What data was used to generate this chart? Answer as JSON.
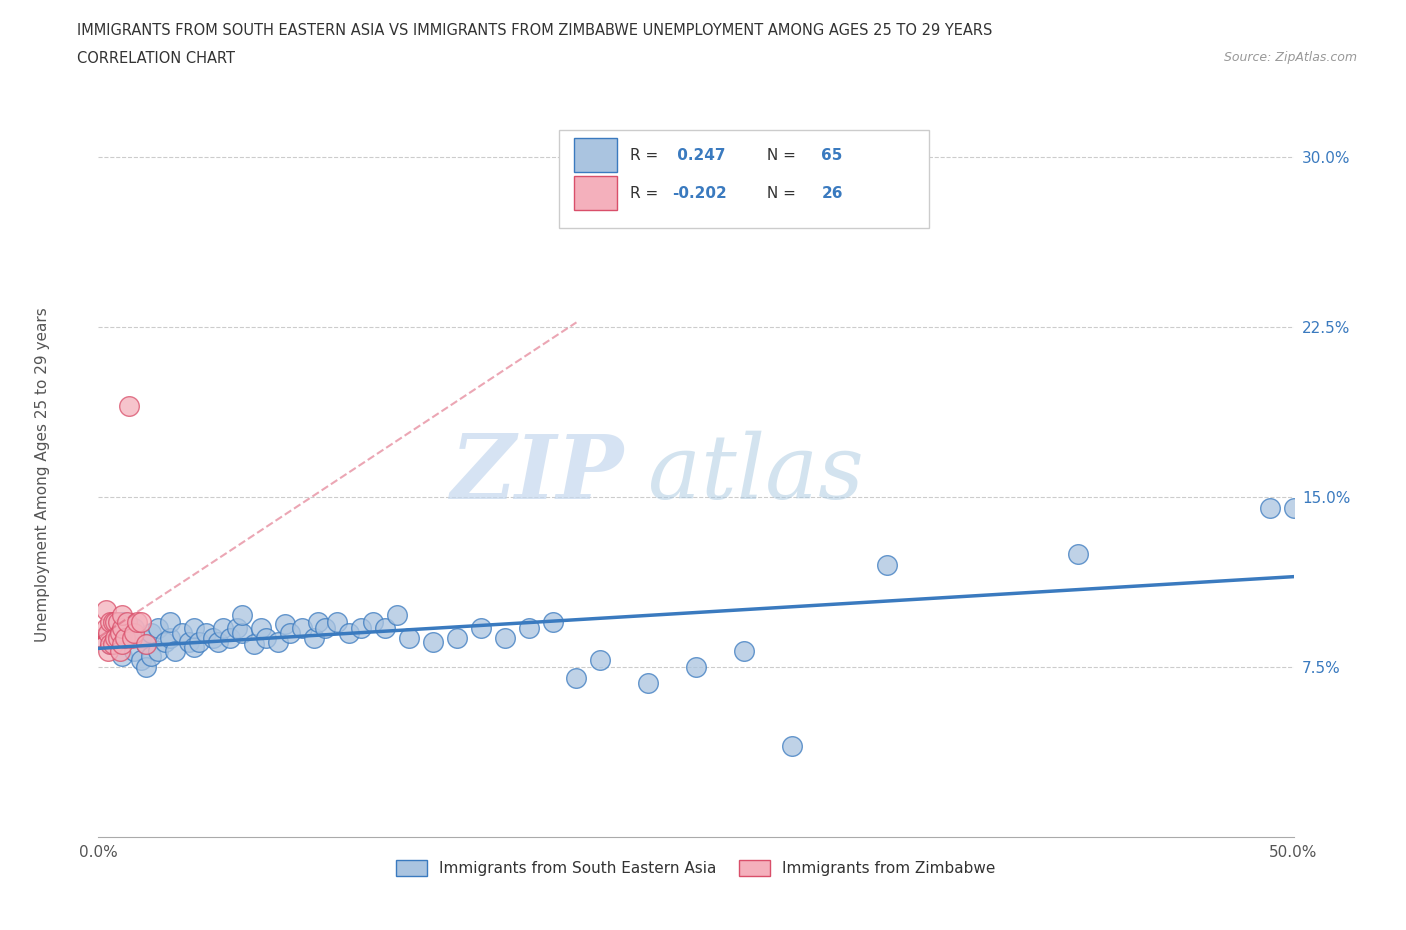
{
  "title_line1": "IMMIGRANTS FROM SOUTH EASTERN ASIA VS IMMIGRANTS FROM ZIMBABWE UNEMPLOYMENT AMONG AGES 25 TO 29 YEARS",
  "title_line2": "CORRELATION CHART",
  "source_text": "Source: ZipAtlas.com",
  "ylabel": "Unemployment Among Ages 25 to 29 years",
  "xmin": 0.0,
  "xmax": 0.5,
  "ymin": 0.0,
  "ymax": 0.32,
  "yticks": [
    0.0,
    0.075,
    0.15,
    0.225,
    0.3
  ],
  "ytick_labels": [
    "",
    "7.5%",
    "15.0%",
    "22.5%",
    "30.0%"
  ],
  "xticks": [
    0.0,
    0.1,
    0.2,
    0.3,
    0.4,
    0.5
  ],
  "xtick_labels": [
    "0.0%",
    "",
    "",
    "",
    "",
    "50.0%"
  ],
  "r_blue": 0.247,
  "n_blue": 65,
  "r_pink": -0.202,
  "n_pink": 26,
  "blue_color": "#aac4e0",
  "pink_color": "#f4b0bc",
  "blue_line_color": "#3a7abf",
  "pink_line_color": "#d94f6a",
  "legend_label_blue": "Immigrants from South Eastern Asia",
  "legend_label_pink": "Immigrants from Zimbabwe",
  "watermark_zip": "ZIP",
  "watermark_atlas": "atlas",
  "blue_scatter_x": [
    0.005,
    0.007,
    0.01,
    0.01,
    0.012,
    0.015,
    0.015,
    0.018,
    0.018,
    0.02,
    0.02,
    0.022,
    0.022,
    0.025,
    0.025,
    0.028,
    0.03,
    0.03,
    0.032,
    0.035,
    0.038,
    0.04,
    0.04,
    0.042,
    0.045,
    0.048,
    0.05,
    0.052,
    0.055,
    0.058,
    0.06,
    0.06,
    0.065,
    0.068,
    0.07,
    0.075,
    0.078,
    0.08,
    0.085,
    0.09,
    0.092,
    0.095,
    0.1,
    0.105,
    0.11,
    0.115,
    0.12,
    0.125,
    0.13,
    0.14,
    0.15,
    0.16,
    0.17,
    0.18,
    0.19,
    0.2,
    0.21,
    0.23,
    0.25,
    0.27,
    0.29,
    0.33,
    0.41,
    0.49,
    0.5
  ],
  "blue_scatter_y": [
    0.085,
    0.09,
    0.08,
    0.095,
    0.088,
    0.082,
    0.092,
    0.078,
    0.088,
    0.075,
    0.085,
    0.08,
    0.09,
    0.082,
    0.092,
    0.086,
    0.088,
    0.095,
    0.082,
    0.09,
    0.086,
    0.084,
    0.092,
    0.086,
    0.09,
    0.088,
    0.086,
    0.092,
    0.088,
    0.092,
    0.09,
    0.098,
    0.085,
    0.092,
    0.088,
    0.086,
    0.094,
    0.09,
    0.092,
    0.088,
    0.095,
    0.092,
    0.095,
    0.09,
    0.092,
    0.095,
    0.092,
    0.098,
    0.088,
    0.086,
    0.088,
    0.092,
    0.088,
    0.092,
    0.095,
    0.07,
    0.078,
    0.068,
    0.075,
    0.082,
    0.04,
    0.12,
    0.125,
    0.145,
    0.145
  ],
  "pink_scatter_x": [
    0.002,
    0.003,
    0.003,
    0.004,
    0.004,
    0.005,
    0.005,
    0.006,
    0.006,
    0.007,
    0.007,
    0.008,
    0.008,
    0.009,
    0.009,
    0.01,
    0.01,
    0.01,
    0.011,
    0.012,
    0.013,
    0.014,
    0.015,
    0.016,
    0.018,
    0.02
  ],
  "pink_scatter_y": [
    0.088,
    0.092,
    0.1,
    0.082,
    0.09,
    0.085,
    0.095,
    0.085,
    0.095,
    0.088,
    0.095,
    0.088,
    0.095,
    0.082,
    0.09,
    0.085,
    0.092,
    0.098,
    0.088,
    0.095,
    0.19,
    0.088,
    0.09,
    0.095,
    0.095,
    0.085
  ]
}
